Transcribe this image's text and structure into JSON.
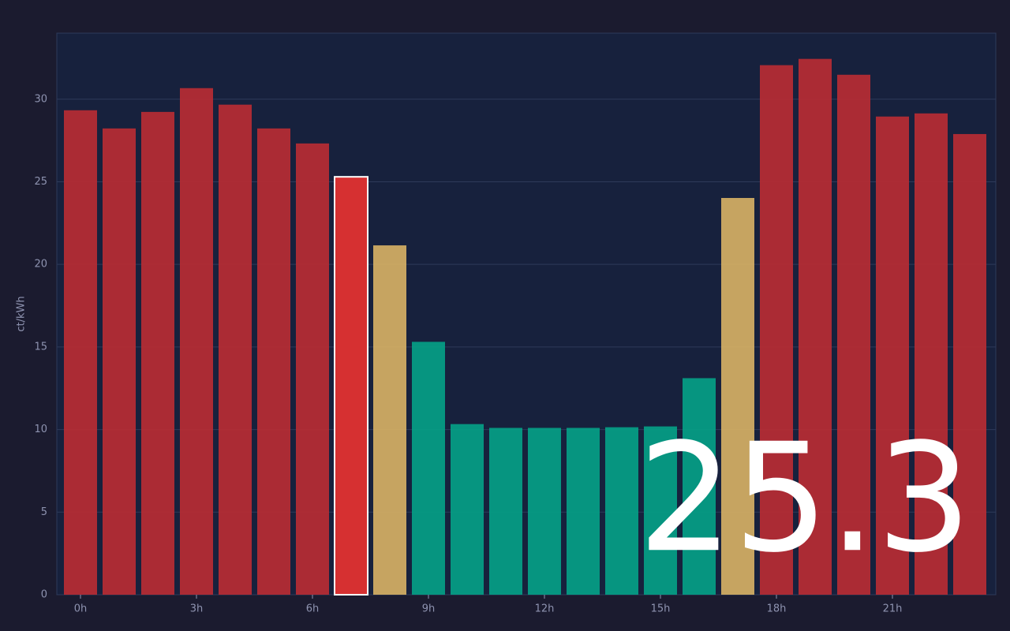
{
  "chart_data": {
    "type": "bar",
    "y_label": "ct/kWh",
    "categories": [
      "0h",
      null,
      null,
      "3h",
      null,
      null,
      "6h",
      null,
      null,
      "9h",
      null,
      null,
      "12h",
      null,
      null,
      "15h",
      null,
      null,
      "18h",
      null,
      null,
      "21h",
      null,
      null
    ],
    "values": [
      29.33,
      28.23,
      29.23,
      30.67,
      29.67,
      28.23,
      27.32,
      25.3,
      21.15,
      15.31,
      10.33,
      10.1,
      10.1,
      10.1,
      10.14,
      10.19,
      13.11,
      24.02,
      32.06,
      32.44,
      31.48,
      28.95,
      29.14,
      27.89
    ],
    "colors": [
      "#b82c33",
      "#b82c33",
      "#b82c33",
      "#b82c33",
      "#b82c33",
      "#b82c33",
      "#b82c33",
      "#d63031",
      "#d6b064",
      "#05a086",
      "#05a086",
      "#05a086",
      "#05a086",
      "#05a086",
      "#05a086",
      "#05a086",
      "#05a086",
      "#d6b064",
      "#b82c33",
      "#b82c33",
      "#b82c33",
      "#b82c33",
      "#b82c33",
      "#b82c33"
    ],
    "highlight": 7,
    "ylim": [
      0,
      34
    ],
    "yticks": [
      0,
      5,
      10,
      15,
      20,
      25,
      30
    ],
    "grid": true
  }
}
